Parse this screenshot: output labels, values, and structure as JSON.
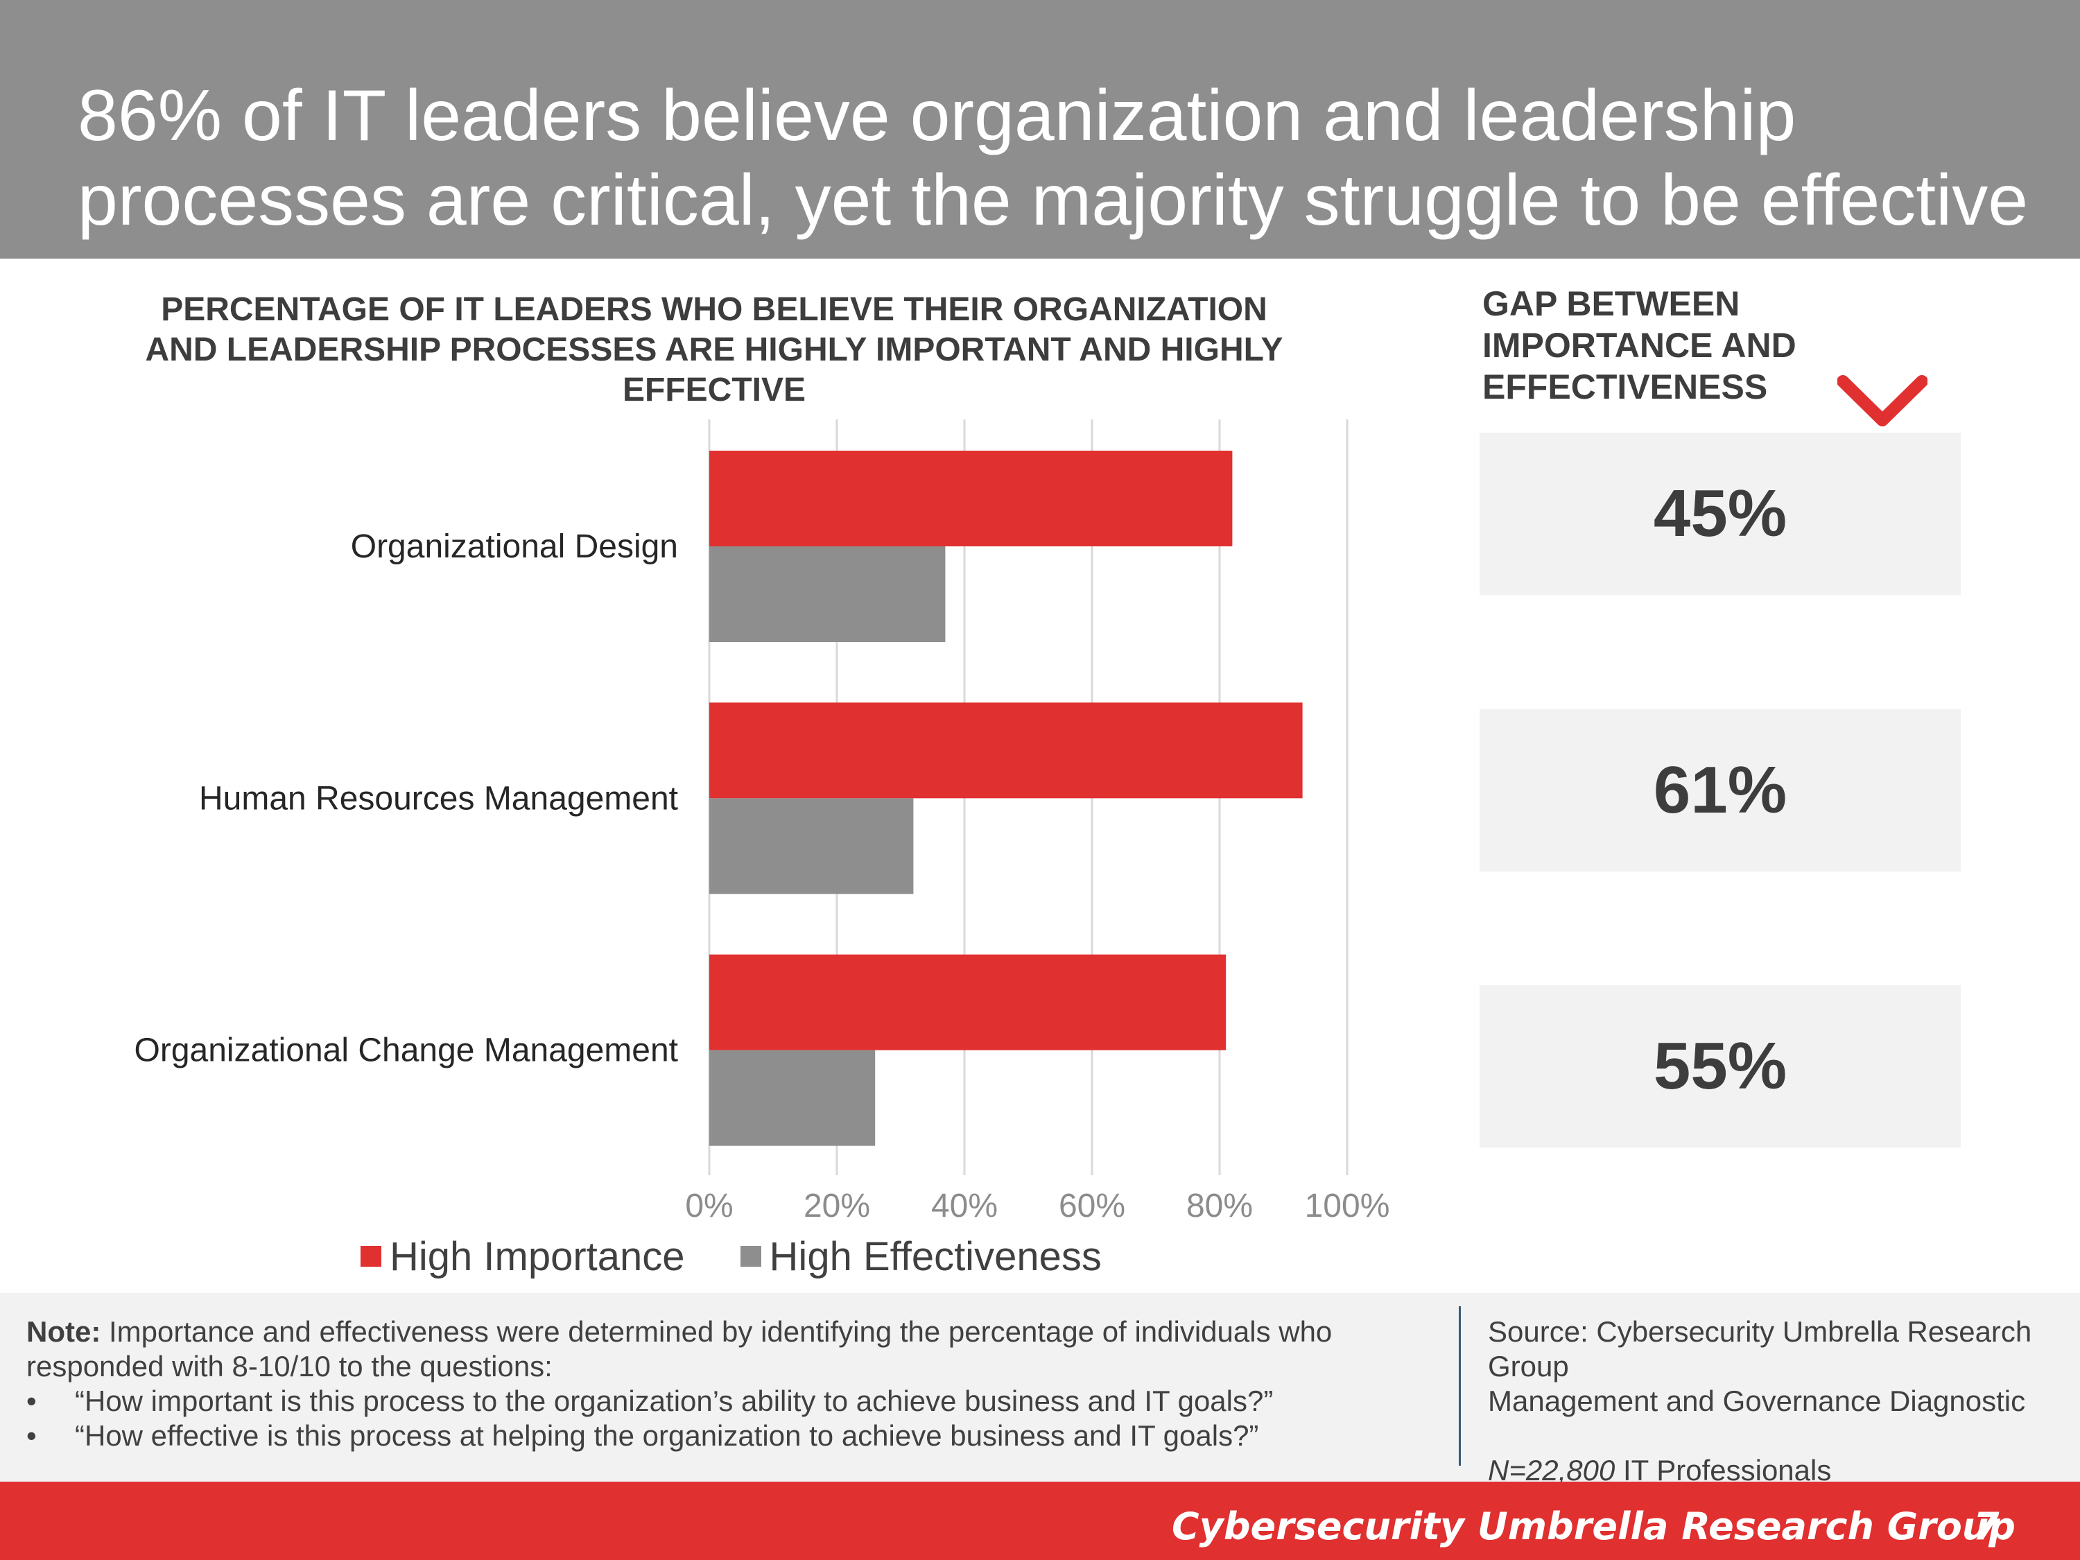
{
  "header": {
    "title": "86% of IT leaders believe organization and leadership processes are critical, yet the majority struggle to be effective"
  },
  "chart": {
    "title": "PERCENTAGE OF IT LEADERS WHO BELIEVE THEIR ORGANIZATION AND LEADERSHIP PROCESSES ARE HIGHLY IMPORTANT AND HIGHLY EFFECTIVE"
  },
  "chart_data": {
    "type": "bar",
    "orientation": "horizontal",
    "title": "PERCENTAGE OF IT LEADERS WHO BELIEVE THEIR ORGANIZATION AND LEADERSHIP PROCESSES ARE HIGHLY IMPORTANT AND HIGHLY EFFECTIVE",
    "categories": [
      "Organizational Design",
      "Human Resources Management",
      "Organizational Change Management"
    ],
    "series": [
      {
        "name": "High Importance",
        "color": "#e03030",
        "values": [
          82,
          93,
          81
        ]
      },
      {
        "name": "High Effectiveness",
        "color": "#8e8e8e",
        "values": [
          37,
          32,
          26
        ]
      }
    ],
    "xlim": [
      0,
      100
    ],
    "xticks": [
      "0%",
      "20%",
      "40%",
      "60%",
      "80%",
      "100%"
    ],
    "grid": "vertical",
    "legend": "bottom"
  },
  "gap": {
    "title": "GAP BETWEEN IMPORTANCE AND EFFECTIVENESS",
    "values": [
      "45%",
      "61%",
      "55%"
    ],
    "icon": "checkmark-icon",
    "accent": "#e03030"
  },
  "note": {
    "label": "Note:",
    "text": "Importance and effectiveness were determined by identifying the percentage of individuals who responded with 8-10/10 to the questions:",
    "bullets": [
      "“How important is this process to the organization’s ability to achieve business and IT goals?”",
      "“How effective is this process at helping the organization to achieve business and IT goals?”"
    ]
  },
  "source": {
    "line1": "Source: Cybersecurity Umbrella Research Group",
    "line2": "Management and Governance Diagnostic",
    "n_label": "N=22,800",
    "n_rest": " IT Professionals"
  },
  "footer": {
    "brand": "Cybersecurity Umbrella Research Group",
    "page_number": "7"
  }
}
